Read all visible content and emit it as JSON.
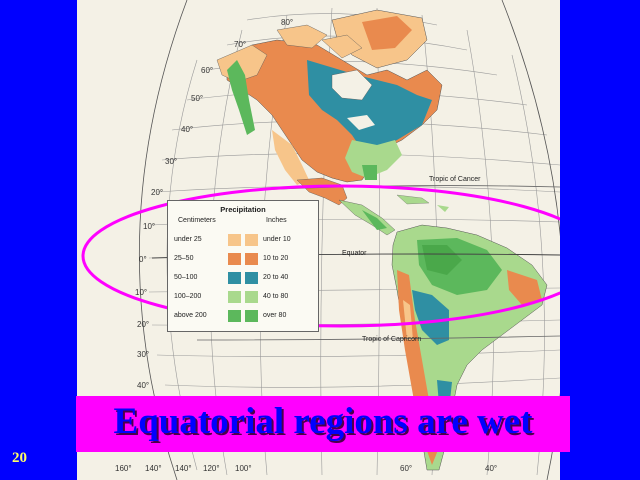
{
  "map": {
    "lat_labels": [
      "80°",
      "70°",
      "60°",
      "50°",
      "40°",
      "30°",
      "20°",
      "10°",
      "0°",
      "10°",
      "20°",
      "30°",
      "40°"
    ],
    "lon_labels": [
      "160°",
      "140°",
      "120°",
      "100°",
      "60°",
      "40°"
    ],
    "tropic_of_cancer": "Tropic of Cancer",
    "equator": "Equator",
    "tropic_of_capricorn": "Tropic of Capricorn",
    "colors": {
      "ocean": "#f4f1e6",
      "under_25": "#f7c58a",
      "25_50": "#e98a4e",
      "50_100": "#2f8fa3",
      "100_200": "#a9d98d",
      "above_200": "#5cb85c",
      "highlight_ellipse": "#ff00ff"
    }
  },
  "legend": {
    "title": "Precipitation",
    "centimeters_header": "Centimeters",
    "inches_header": "Inches",
    "rows": [
      {
        "cm": "under 25",
        "in": "under 10"
      },
      {
        "cm": "25–50",
        "in": "10 to 20"
      },
      {
        "cm": "50–100",
        "in": "20 to 40"
      },
      {
        "cm": "100–200",
        "in": "40 to 80"
      },
      {
        "cm": "above 200",
        "in": "over 80"
      }
    ]
  },
  "caption": "Equatorial regions are wet",
  "slide_number": "20"
}
